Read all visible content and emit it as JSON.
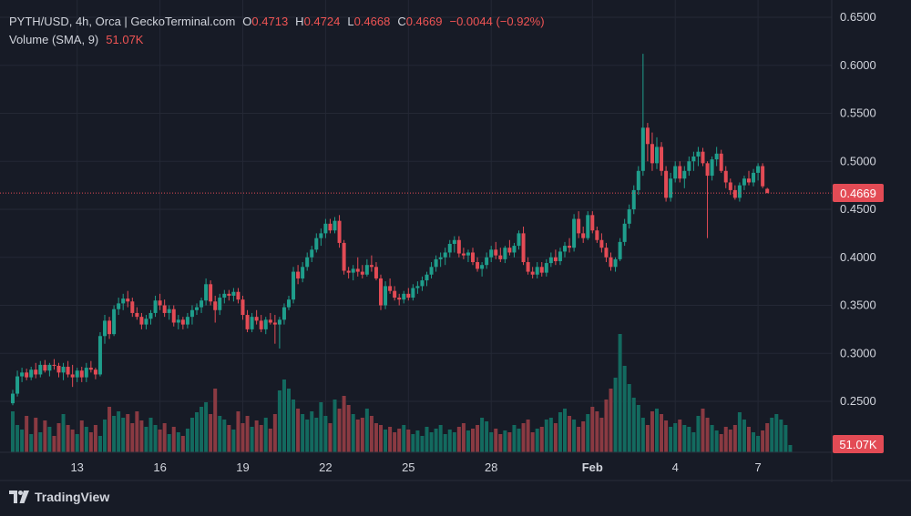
{
  "legend": {
    "symbol": "PYTH/USD, 4h, Orca | GeckoTerminal.com",
    "open_key": "O",
    "open": "0.4713",
    "high_key": "H",
    "high": "0.4724",
    "low_key": "L",
    "low": "0.4668",
    "close_key": "C",
    "close": "0.4669",
    "change": "−0.0044 (−0.92%)",
    "volume_label": "Volume (SMA, 9)",
    "volume_value": "51.07K"
  },
  "price_badge": "0.4669",
  "volume_badge": "51.07K",
  "brand": "TradingView",
  "colors": {
    "background": "#171b26",
    "grid": "#242835",
    "up": "#1f9e8c",
    "down": "#e34b55",
    "up_volume": "#136a5f",
    "down_volume": "#8a3a42",
    "text": "#d1d4dc"
  },
  "chart_data": {
    "type": "candlestick",
    "interval": "4h",
    "y_axis_ticks": [
      "0.6500",
      "0.6000",
      "0.5500",
      "0.5000",
      "0.4500",
      "0.4000",
      "0.3500",
      "0.3000",
      "0.2500"
    ],
    "ylim": [
      0.23,
      0.66
    ],
    "x_axis_ticks": [
      {
        "label": "13",
        "index": 14
      },
      {
        "label": "16",
        "index": 32
      },
      {
        "label": "19",
        "index": 50
      },
      {
        "label": "22",
        "index": 68
      },
      {
        "label": "25",
        "index": 86
      },
      {
        "label": "28",
        "index": 104
      },
      {
        "label": "Feb",
        "index": 126
      },
      {
        "label": "4",
        "index": 144
      },
      {
        "label": "7",
        "index": 162
      }
    ],
    "last_price": 0.4669,
    "volume_sma": "51.07K",
    "candles": [
      [
        0.248,
        0.262,
        0.246,
        0.258
      ],
      [
        0.258,
        0.282,
        0.255,
        0.276
      ],
      [
        0.276,
        0.285,
        0.27,
        0.28
      ],
      [
        0.28,
        0.284,
        0.272,
        0.275
      ],
      [
        0.275,
        0.286,
        0.272,
        0.283
      ],
      [
        0.283,
        0.29,
        0.274,
        0.278
      ],
      [
        0.278,
        0.292,
        0.275,
        0.288
      ],
      [
        0.288,
        0.293,
        0.28,
        0.282
      ],
      [
        0.282,
        0.29,
        0.276,
        0.288
      ],
      [
        0.288,
        0.294,
        0.283,
        0.287
      ],
      [
        0.287,
        0.29,
        0.275,
        0.28
      ],
      [
        0.28,
        0.29,
        0.272,
        0.286
      ],
      [
        0.286,
        0.292,
        0.275,
        0.278
      ],
      [
        0.278,
        0.288,
        0.265,
        0.275
      ],
      [
        0.275,
        0.285,
        0.27,
        0.282
      ],
      [
        0.282,
        0.286,
        0.27,
        0.275
      ],
      [
        0.275,
        0.29,
        0.27,
        0.285
      ],
      [
        0.285,
        0.292,
        0.28,
        0.283
      ],
      [
        0.283,
        0.285,
        0.273,
        0.278
      ],
      [
        0.278,
        0.322,
        0.276,
        0.318
      ],
      [
        0.318,
        0.34,
        0.31,
        0.334
      ],
      [
        0.334,
        0.338,
        0.315,
        0.32
      ],
      [
        0.32,
        0.35,
        0.318,
        0.346
      ],
      [
        0.346,
        0.358,
        0.34,
        0.352
      ],
      [
        0.352,
        0.362,
        0.345,
        0.357
      ],
      [
        0.357,
        0.365,
        0.348,
        0.354
      ],
      [
        0.354,
        0.358,
        0.338,
        0.342
      ],
      [
        0.342,
        0.348,
        0.335,
        0.338
      ],
      [
        0.338,
        0.342,
        0.325,
        0.33
      ],
      [
        0.33,
        0.34,
        0.325,
        0.336
      ],
      [
        0.336,
        0.345,
        0.33,
        0.342
      ],
      [
        0.342,
        0.36,
        0.338,
        0.355
      ],
      [
        0.355,
        0.362,
        0.345,
        0.35
      ],
      [
        0.35,
        0.356,
        0.338,
        0.342
      ],
      [
        0.342,
        0.35,
        0.335,
        0.346
      ],
      [
        0.346,
        0.35,
        0.328,
        0.332
      ],
      [
        0.332,
        0.34,
        0.325,
        0.335
      ],
      [
        0.335,
        0.338,
        0.325,
        0.33
      ],
      [
        0.33,
        0.342,
        0.326,
        0.338
      ],
      [
        0.338,
        0.35,
        0.33,
        0.345
      ],
      [
        0.345,
        0.352,
        0.34,
        0.348
      ],
      [
        0.348,
        0.358,
        0.342,
        0.355
      ],
      [
        0.355,
        0.378,
        0.35,
        0.372
      ],
      [
        0.372,
        0.376,
        0.35,
        0.354
      ],
      [
        0.354,
        0.36,
        0.332,
        0.345
      ],
      [
        0.345,
        0.362,
        0.34,
        0.358
      ],
      [
        0.358,
        0.366,
        0.352,
        0.362
      ],
      [
        0.362,
        0.366,
        0.355,
        0.36
      ],
      [
        0.36,
        0.368,
        0.354,
        0.364
      ],
      [
        0.364,
        0.368,
        0.352,
        0.356
      ],
      [
        0.356,
        0.36,
        0.335,
        0.34
      ],
      [
        0.34,
        0.345,
        0.322,
        0.325
      ],
      [
        0.325,
        0.342,
        0.322,
        0.338
      ],
      [
        0.338,
        0.345,
        0.33,
        0.334
      ],
      [
        0.334,
        0.34,
        0.322,
        0.325
      ],
      [
        0.325,
        0.338,
        0.32,
        0.335
      ],
      [
        0.335,
        0.342,
        0.33,
        0.332
      ],
      [
        0.332,
        0.34,
        0.31,
        0.33
      ],
      [
        0.33,
        0.338,
        0.305,
        0.335
      ],
      [
        0.335,
        0.352,
        0.33,
        0.348
      ],
      [
        0.348,
        0.36,
        0.345,
        0.356
      ],
      [
        0.356,
        0.39,
        0.352,
        0.385
      ],
      [
        0.385,
        0.392,
        0.372,
        0.378
      ],
      [
        0.378,
        0.395,
        0.374,
        0.39
      ],
      [
        0.39,
        0.405,
        0.386,
        0.4
      ],
      [
        0.4,
        0.412,
        0.395,
        0.408
      ],
      [
        0.408,
        0.425,
        0.405,
        0.42
      ],
      [
        0.42,
        0.43,
        0.412,
        0.425
      ],
      [
        0.425,
        0.44,
        0.42,
        0.435
      ],
      [
        0.435,
        0.44,
        0.425,
        0.428
      ],
      [
        0.428,
        0.442,
        0.425,
        0.438
      ],
      [
        0.438,
        0.444,
        0.41,
        0.415
      ],
      [
        0.415,
        0.418,
        0.382,
        0.386
      ],
      [
        0.386,
        0.39,
        0.378,
        0.384
      ],
      [
        0.384,
        0.392,
        0.376,
        0.388
      ],
      [
        0.388,
        0.4,
        0.38,
        0.385
      ],
      [
        0.385,
        0.392,
        0.378,
        0.382
      ],
      [
        0.382,
        0.398,
        0.38,
        0.392
      ],
      [
        0.392,
        0.402,
        0.385,
        0.39
      ],
      [
        0.39,
        0.395,
        0.376,
        0.378
      ],
      [
        0.378,
        0.382,
        0.345,
        0.35
      ],
      [
        0.35,
        0.375,
        0.346,
        0.37
      ],
      [
        0.37,
        0.378,
        0.362,
        0.365
      ],
      [
        0.365,
        0.37,
        0.355,
        0.358
      ],
      [
        0.358,
        0.362,
        0.35,
        0.356
      ],
      [
        0.356,
        0.365,
        0.352,
        0.362
      ],
      [
        0.362,
        0.368,
        0.355,
        0.358
      ],
      [
        0.358,
        0.372,
        0.355,
        0.368
      ],
      [
        0.368,
        0.375,
        0.362,
        0.37
      ],
      [
        0.37,
        0.38,
        0.365,
        0.376
      ],
      [
        0.376,
        0.385,
        0.37,
        0.382
      ],
      [
        0.382,
        0.395,
        0.378,
        0.39
      ],
      [
        0.39,
        0.402,
        0.385,
        0.398
      ],
      [
        0.398,
        0.405,
        0.39,
        0.4
      ],
      [
        0.4,
        0.41,
        0.392,
        0.405
      ],
      [
        0.405,
        0.418,
        0.4,
        0.414
      ],
      [
        0.414,
        0.422,
        0.405,
        0.418
      ],
      [
        0.418,
        0.422,
        0.4,
        0.404
      ],
      [
        0.404,
        0.41,
        0.398,
        0.402
      ],
      [
        0.402,
        0.408,
        0.395,
        0.405
      ],
      [
        0.405,
        0.41,
        0.392,
        0.395
      ],
      [
        0.395,
        0.4,
        0.385,
        0.388
      ],
      [
        0.388,
        0.395,
        0.38,
        0.392
      ],
      [
        0.392,
        0.405,
        0.388,
        0.4
      ],
      [
        0.4,
        0.412,
        0.395,
        0.408
      ],
      [
        0.408,
        0.416,
        0.398,
        0.402
      ],
      [
        0.402,
        0.41,
        0.395,
        0.398
      ],
      [
        0.398,
        0.412,
        0.394,
        0.41
      ],
      [
        0.41,
        0.418,
        0.402,
        0.405
      ],
      [
        0.405,
        0.415,
        0.4,
        0.412
      ],
      [
        0.412,
        0.428,
        0.408,
        0.425
      ],
      [
        0.425,
        0.432,
        0.392,
        0.395
      ],
      [
        0.395,
        0.4,
        0.382,
        0.385
      ],
      [
        0.385,
        0.39,
        0.378,
        0.382
      ],
      [
        0.382,
        0.395,
        0.378,
        0.39
      ],
      [
        0.39,
        0.395,
        0.38,
        0.384
      ],
      [
        0.384,
        0.398,
        0.38,
        0.394
      ],
      [
        0.394,
        0.405,
        0.39,
        0.4
      ],
      [
        0.4,
        0.408,
        0.392,
        0.396
      ],
      [
        0.396,
        0.41,
        0.392,
        0.406
      ],
      [
        0.406,
        0.416,
        0.4,
        0.412
      ],
      [
        0.412,
        0.42,
        0.405,
        0.41
      ],
      [
        0.41,
        0.445,
        0.406,
        0.44
      ],
      [
        0.44,
        0.448,
        0.42,
        0.425
      ],
      [
        0.425,
        0.432,
        0.415,
        0.42
      ],
      [
        0.42,
        0.448,
        0.418,
        0.444
      ],
      [
        0.444,
        0.448,
        0.425,
        0.428
      ],
      [
        0.428,
        0.432,
        0.415,
        0.418
      ],
      [
        0.418,
        0.425,
        0.405,
        0.41
      ],
      [
        0.41,
        0.415,
        0.395,
        0.4
      ],
      [
        0.4,
        0.405,
        0.386,
        0.39
      ],
      [
        0.39,
        0.4,
        0.385,
        0.398
      ],
      [
        0.398,
        0.42,
        0.396,
        0.416
      ],
      [
        0.416,
        0.44,
        0.412,
        0.435
      ],
      [
        0.435,
        0.455,
        0.43,
        0.45
      ],
      [
        0.45,
        0.475,
        0.445,
        0.47
      ],
      [
        0.47,
        0.495,
        0.465,
        0.49
      ],
      [
        0.49,
        0.612,
        0.485,
        0.535
      ],
      [
        0.535,
        0.54,
        0.5,
        0.518
      ],
      [
        0.518,
        0.53,
        0.49,
        0.498
      ],
      [
        0.498,
        0.525,
        0.492,
        0.515
      ],
      [
        0.515,
        0.52,
        0.485,
        0.49
      ],
      [
        0.49,
        0.495,
        0.458,
        0.462
      ],
      [
        0.462,
        0.488,
        0.458,
        0.482
      ],
      [
        0.482,
        0.5,
        0.478,
        0.495
      ],
      [
        0.495,
        0.5,
        0.478,
        0.482
      ],
      [
        0.482,
        0.495,
        0.472,
        0.49
      ],
      [
        0.49,
        0.505,
        0.485,
        0.5
      ],
      [
        0.5,
        0.51,
        0.49,
        0.505
      ],
      [
        0.505,
        0.515,
        0.495,
        0.51
      ],
      [
        0.51,
        0.514,
        0.495,
        0.498
      ],
      [
        0.498,
        0.5,
        0.42,
        0.485
      ],
      [
        0.485,
        0.505,
        0.48,
        0.502
      ],
      [
        0.502,
        0.515,
        0.495,
        0.508
      ],
      [
        0.508,
        0.512,
        0.488,
        0.49
      ],
      [
        0.49,
        0.495,
        0.472,
        0.478
      ],
      [
        0.478,
        0.482,
        0.465,
        0.47
      ],
      [
        0.47,
        0.475,
        0.46,
        0.462
      ],
      [
        0.462,
        0.478,
        0.458,
        0.475
      ],
      [
        0.475,
        0.485,
        0.47,
        0.482
      ],
      [
        0.482,
        0.49,
        0.475,
        0.478
      ],
      [
        0.478,
        0.492,
        0.474,
        0.488
      ],
      [
        0.488,
        0.498,
        0.48,
        0.495
      ],
      [
        0.495,
        0.498,
        0.472,
        0.474
      ],
      [
        0.4713,
        0.4724,
        0.4668,
        0.4669
      ]
    ],
    "volumes": [
      45,
      30,
      25,
      40,
      20,
      38,
      22,
      35,
      28,
      18,
      32,
      42,
      30,
      25,
      20,
      35,
      28,
      22,
      30,
      18,
      36,
      50,
      40,
      45,
      38,
      42,
      32,
      45,
      35,
      28,
      38,
      30,
      25,
      32,
      20,
      28,
      22,
      18,
      26,
      38,
      44,
      50,
      55,
      42,
      70,
      40,
      36,
      30,
      25,
      45,
      32,
      40,
      28,
      35,
      30,
      38,
      26,
      42,
      68,
      80,
      70,
      58,
      48,
      42,
      36,
      45,
      38,
      55,
      40,
      32,
      58,
      48,
      62,
      52,
      42,
      36,
      38,
      48,
      40,
      32,
      30,
      25,
      28,
      22,
      26,
      30,
      25,
      20,
      24,
      18,
      28,
      22,
      26,
      30,
      20,
      25,
      22,
      28,
      32,
      24,
      26,
      30,
      38,
      34,
      22,
      26,
      20,
      24,
      22,
      30,
      26,
      32,
      36,
      22,
      26,
      28,
      36,
      38,
      32,
      44,
      48,
      40,
      36,
      28,
      34,
      42,
      50,
      45,
      38,
      58,
      70,
      82,
      130,
      95,
      75,
      60,
      52,
      38,
      30,
      45,
      48,
      42,
      35,
      28,
      32,
      36,
      30,
      28,
      22,
      40,
      48,
      38,
      30,
      24,
      20,
      28,
      25,
      30,
      44,
      36,
      28,
      22,
      18,
      24,
      32,
      38,
      42,
      36,
      30,
      8
    ]
  }
}
